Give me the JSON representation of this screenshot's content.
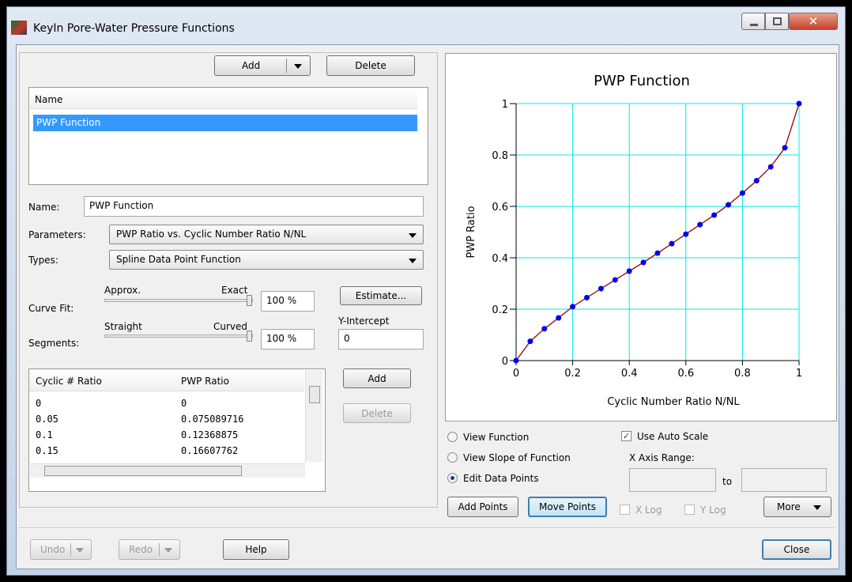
{
  "window": {
    "title": "KeyIn Pore-Water Pressure Functions"
  },
  "toolbar": {
    "add": "Add",
    "delete": "Delete"
  },
  "list": {
    "header": "Name",
    "items": [
      "PWP Function"
    ]
  },
  "form": {
    "name_label": "Name:",
    "name_value": "PWP Function",
    "parameters_label": "Parameters:",
    "parameters_value": "PWP Ratio vs. Cyclic Number Ratio N/NL",
    "types_label": "Types:",
    "types_value": "Spline Data Point Function",
    "curve_fit_label": "Curve Fit:",
    "approx": "Approx.",
    "exact": "Exact",
    "curve_fit_value": "100 %",
    "segments_label": "Segments:",
    "straight": "Straight",
    "curved": "Curved",
    "segments_value": "100 %",
    "estimate": "Estimate...",
    "y_intercept_label": "Y-Intercept",
    "y_intercept_value": "0"
  },
  "table": {
    "columns": [
      "Cyclic # Ratio",
      "PWP Ratio"
    ],
    "rows": [
      [
        "0",
        "0"
      ],
      [
        "0.05",
        "0.075089716"
      ],
      [
        "0.1",
        "0.12368875"
      ],
      [
        "0.15",
        "0.16607762"
      ]
    ]
  },
  "table_buttons": {
    "add": "Add",
    "delete": "Delete"
  },
  "chart_data": {
    "type": "line",
    "title": "PWP Function",
    "x_label": "Cyclic Number Ratio N/NL",
    "y_label": "PWP Ratio",
    "x": [
      0,
      0.05,
      0.1,
      0.15,
      0.2,
      0.25,
      0.3,
      0.35,
      0.4,
      0.45,
      0.5,
      0.55,
      0.6,
      0.65,
      0.7,
      0.75,
      0.8,
      0.85,
      0.9,
      0.95,
      1
    ],
    "series": [
      {
        "color": "#990000",
        "marker_color": "#0000ee",
        "values": [
          0,
          0.075,
          0.124,
          0.166,
          0.21,
          0.245,
          0.28,
          0.314,
          0.348,
          0.382,
          0.418,
          0.455,
          0.492,
          0.529,
          0.566,
          0.606,
          0.652,
          0.7,
          0.754,
          0.828,
          1
        ]
      }
    ],
    "xlim": [
      0,
      1
    ],
    "ylim": [
      0,
      1
    ],
    "xticks": [
      0,
      0.2,
      0.4,
      0.6,
      0.8,
      1
    ],
    "yticks": [
      0,
      0.2,
      0.4,
      0.6,
      0.8,
      1
    ],
    "grid": true,
    "grid_color": "#00e8e8"
  },
  "options": {
    "view_function": "View Function",
    "view_slope": "View Slope of Function",
    "edit_points": "Edit Data Points",
    "auto_scale": "Use Auto Scale",
    "x_axis_range": "X Axis Range:",
    "to": "to",
    "add_points": "Add Points",
    "move_points": "Move Points",
    "x_log": "X Log",
    "y_log": "Y Log",
    "more": "More"
  },
  "footer": {
    "undo": "Undo",
    "redo": "Redo",
    "help": "Help",
    "close": "Close"
  }
}
